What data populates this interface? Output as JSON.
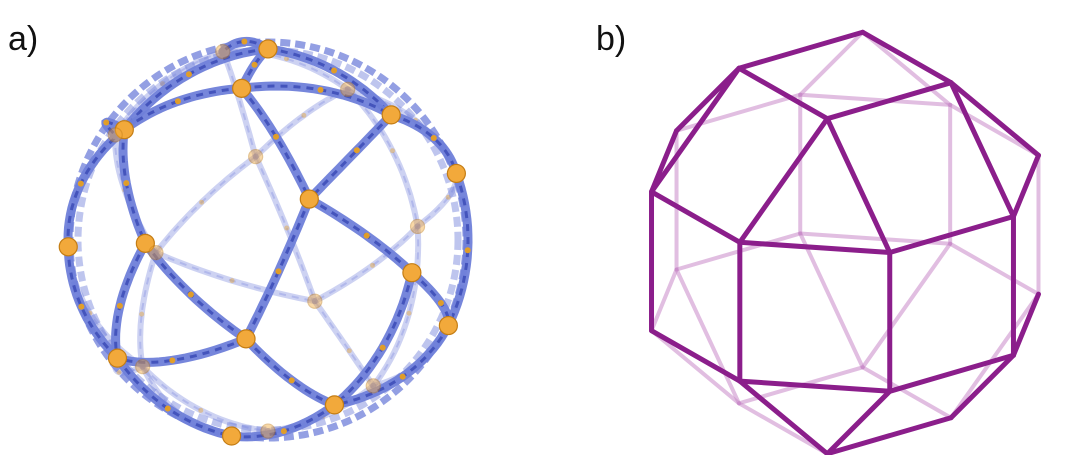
{
  "figure": {
    "panel_a_label": "a)",
    "panel_b_label": "b)"
  },
  "colors": {
    "ligand": "#6f7fd9",
    "ligand_dark": "#3f4fb8",
    "metal": "#f2a93b",
    "metal_edge": "#c47d14",
    "sulfur": "#e8a020",
    "polyhedron": "#8b1e8b",
    "polyhedron_back": "#c98ac9"
  },
  "icons": {
    "panel_a": "metal-organic-sphere-structure",
    "panel_b": "rhombicuboctahedron-wireframe"
  }
}
